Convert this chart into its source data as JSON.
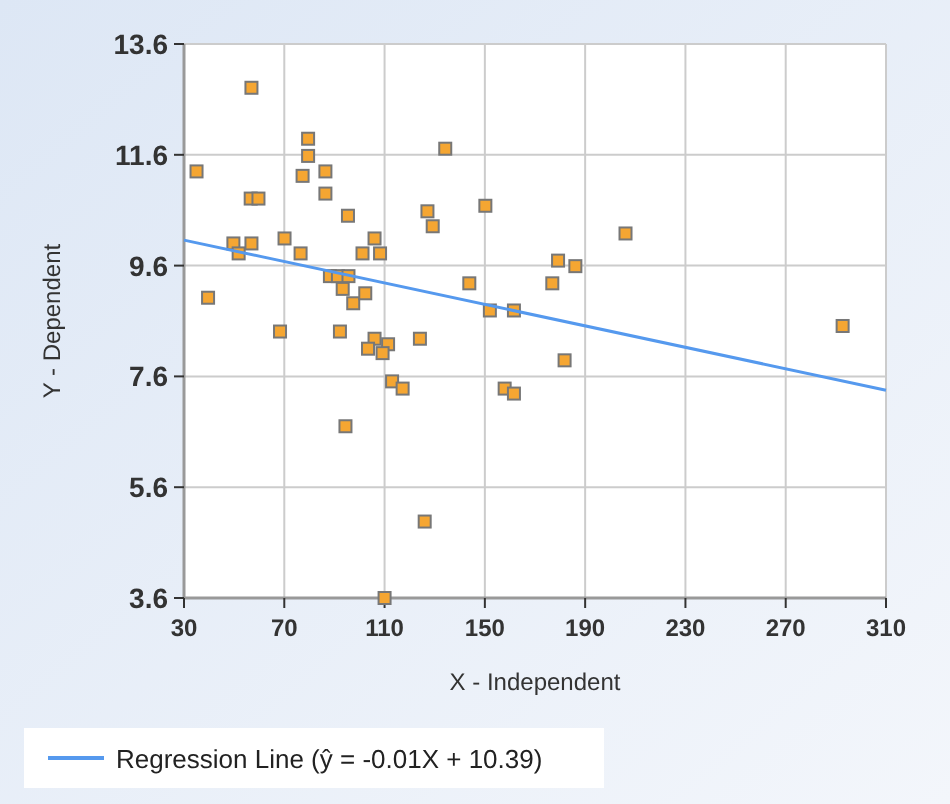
{
  "chart_data": {
    "type": "scatter",
    "xlabel": "X - Independent",
    "ylabel": "Y - Dependent",
    "xlim": [
      30,
      310
    ],
    "xticks": [
      30,
      70,
      110,
      150,
      190,
      230,
      270,
      310
    ],
    "ylim": [
      3.6,
      13.6
    ],
    "yticks": [
      3.6,
      5.6,
      7.6,
      9.6,
      11.6,
      13.6
    ],
    "grid": true,
    "legend": "bottom",
    "series": [
      {
        "marker": "square",
        "color": "#f5a632",
        "x": [
          35,
          56.9,
          79.5,
          79.5,
          77.3,
          86.4,
          134.2,
          56.6,
          59.7,
          86.4,
          95.4,
          127.1,
          129.2,
          150.2,
          49.7,
          51.8,
          56.9,
          70.1,
          76.5,
          106,
          101.2,
          108.2,
          88.2,
          91.4,
          95.6,
          93.3,
          97.5,
          102.3,
          39.6,
          143.8,
          152,
          161.6,
          68.3,
          92.2,
          106,
          103.4,
          111.4,
          109.2,
          124.1,
          113,
          117.2,
          157.9,
          161.6,
          94.4,
          126,
          110,
          206.1,
          179.2,
          186.1,
          176.9,
          292.7,
          181.8
        ],
        "values": [
          11.3,
          12.81,
          11.89,
          11.58,
          11.22,
          11.3,
          11.71,
          10.81,
          10.81,
          10.9,
          10.5,
          10.58,
          10.31,
          10.68,
          10,
          9.82,
          10,
          10.09,
          9.82,
          10.09,
          9.82,
          9.82,
          9.41,
          9.41,
          9.41,
          9.18,
          8.92,
          9.1,
          9.02,
          9.28,
          8.79,
          8.79,
          8.41,
          8.41,
          8.28,
          8.1,
          8.18,
          8.02,
          8.28,
          7.51,
          7.38,
          7.38,
          7.29,
          6.7,
          4.98,
          3.6,
          10.18,
          9.69,
          9.59,
          9.28,
          8.51,
          7.89
        ]
      },
      {
        "type": "line",
        "marker": "none",
        "name": "Regression Line (ŷ = -0.01X + 10.39)",
        "color": "#5599ee",
        "x": [
          30,
          310
        ],
        "values": [
          10.06,
          7.35
        ]
      }
    ]
  }
}
